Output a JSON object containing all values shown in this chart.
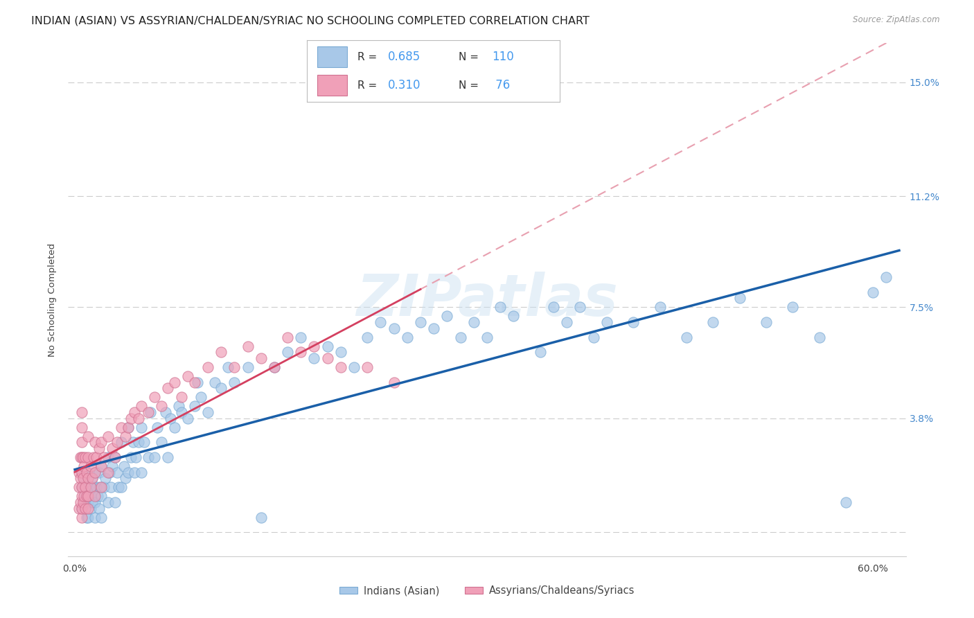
{
  "title": "INDIAN (ASIAN) VS ASSYRIAN/CHALDEAN/SYRIAC NO SCHOOLING COMPLETED CORRELATION CHART",
  "source": "Source: ZipAtlas.com",
  "ylabel": "No Schooling Completed",
  "watermark": "ZIPatlas",
  "legend1_label": "Indians (Asian)",
  "legend2_label": "Assyrians/Chaldeans/Syriacs",
  "r1": 0.685,
  "n1": 110,
  "r2": 0.31,
  "n2": 76,
  "scatter_color1": "#a8c8e8",
  "scatter_color2": "#f0a0b8",
  "line_color1": "#1a5fa8",
  "line_color2": "#d44060",
  "line_color2_dash": "#e8a0b0",
  "background_color": "#ffffff",
  "grid_color": "#cccccc",
  "xmin": -0.005,
  "xmax": 0.625,
  "ymin": -0.008,
  "ymax": 0.163,
  "ytick_positions": [
    0.0,
    0.038,
    0.075,
    0.112,
    0.15
  ],
  "ytick_labels": [
    "",
    "3.8%",
    "7.5%",
    "11.2%",
    "15.0%"
  ],
  "xtick_positions": [
    0.0,
    0.12,
    0.24,
    0.36,
    0.48,
    0.6
  ],
  "xtick_labels": [
    "0.0%",
    "",
    "",
    "",
    "",
    "60.0%"
  ],
  "title_fontsize": 11.5,
  "label_fontsize": 9.5,
  "tick_fontsize": 10,
  "blue_scatter_x": [
    0.005,
    0.005,
    0.005,
    0.007,
    0.007,
    0.008,
    0.009,
    0.01,
    0.01,
    0.01,
    0.01,
    0.012,
    0.012,
    0.013,
    0.013,
    0.014,
    0.015,
    0.015,
    0.015,
    0.016,
    0.017,
    0.018,
    0.018,
    0.019,
    0.02,
    0.02,
    0.02,
    0.022,
    0.023,
    0.025,
    0.025,
    0.026,
    0.027,
    0.028,
    0.03,
    0.03,
    0.032,
    0.033,
    0.035,
    0.035,
    0.037,
    0.038,
    0.04,
    0.04,
    0.042,
    0.044,
    0.045,
    0.046,
    0.048,
    0.05,
    0.05,
    0.052,
    0.055,
    0.057,
    0.06,
    0.062,
    0.065,
    0.068,
    0.07,
    0.072,
    0.075,
    0.078,
    0.08,
    0.085,
    0.09,
    0.092,
    0.095,
    0.1,
    0.105,
    0.11,
    0.115,
    0.12,
    0.13,
    0.14,
    0.15,
    0.16,
    0.17,
    0.18,
    0.19,
    0.2,
    0.21,
    0.22,
    0.23,
    0.24,
    0.25,
    0.26,
    0.27,
    0.28,
    0.29,
    0.3,
    0.31,
    0.32,
    0.33,
    0.35,
    0.36,
    0.37,
    0.38,
    0.39,
    0.4,
    0.42,
    0.44,
    0.46,
    0.48,
    0.5,
    0.52,
    0.54,
    0.56,
    0.58,
    0.6,
    0.61
  ],
  "blue_scatter_y": [
    0.008,
    0.015,
    0.02,
    0.01,
    0.018,
    0.012,
    0.005,
    0.005,
    0.01,
    0.015,
    0.02,
    0.008,
    0.012,
    0.01,
    0.018,
    0.015,
    0.005,
    0.01,
    0.02,
    0.015,
    0.012,
    0.008,
    0.02,
    0.015,
    0.005,
    0.012,
    0.022,
    0.015,
    0.018,
    0.01,
    0.025,
    0.02,
    0.015,
    0.022,
    0.01,
    0.025,
    0.02,
    0.015,
    0.015,
    0.03,
    0.022,
    0.018,
    0.02,
    0.035,
    0.025,
    0.03,
    0.02,
    0.025,
    0.03,
    0.02,
    0.035,
    0.03,
    0.025,
    0.04,
    0.025,
    0.035,
    0.03,
    0.04,
    0.025,
    0.038,
    0.035,
    0.042,
    0.04,
    0.038,
    0.042,
    0.05,
    0.045,
    0.04,
    0.05,
    0.048,
    0.055,
    0.05,
    0.055,
    0.005,
    0.055,
    0.06,
    0.065,
    0.058,
    0.062,
    0.06,
    0.055,
    0.065,
    0.07,
    0.068,
    0.065,
    0.07,
    0.068,
    0.072,
    0.065,
    0.07,
    0.065,
    0.075,
    0.072,
    0.06,
    0.075,
    0.07,
    0.075,
    0.065,
    0.07,
    0.07,
    0.075,
    0.065,
    0.07,
    0.078,
    0.07,
    0.075,
    0.065,
    0.01,
    0.08,
    0.085
  ],
  "pink_scatter_x": [
    0.003,
    0.003,
    0.003,
    0.004,
    0.004,
    0.004,
    0.005,
    0.005,
    0.005,
    0.005,
    0.005,
    0.005,
    0.005,
    0.005,
    0.005,
    0.006,
    0.006,
    0.006,
    0.007,
    0.007,
    0.008,
    0.008,
    0.008,
    0.009,
    0.009,
    0.01,
    0.01,
    0.01,
    0.01,
    0.01,
    0.012,
    0.012,
    0.013,
    0.014,
    0.015,
    0.015,
    0.015,
    0.016,
    0.018,
    0.02,
    0.02,
    0.02,
    0.022,
    0.025,
    0.025,
    0.028,
    0.03,
    0.032,
    0.035,
    0.038,
    0.04,
    0.042,
    0.045,
    0.048,
    0.05,
    0.055,
    0.06,
    0.065,
    0.07,
    0.075,
    0.08,
    0.085,
    0.09,
    0.1,
    0.11,
    0.12,
    0.13,
    0.14,
    0.15,
    0.16,
    0.17,
    0.18,
    0.19,
    0.2,
    0.22,
    0.24
  ],
  "pink_scatter_y": [
    0.008,
    0.015,
    0.02,
    0.01,
    0.018,
    0.025,
    0.005,
    0.008,
    0.012,
    0.015,
    0.02,
    0.025,
    0.03,
    0.035,
    0.04,
    0.01,
    0.018,
    0.025,
    0.012,
    0.022,
    0.008,
    0.015,
    0.025,
    0.012,
    0.02,
    0.008,
    0.012,
    0.018,
    0.025,
    0.032,
    0.015,
    0.022,
    0.018,
    0.025,
    0.012,
    0.02,
    0.03,
    0.025,
    0.028,
    0.015,
    0.022,
    0.03,
    0.025,
    0.02,
    0.032,
    0.028,
    0.025,
    0.03,
    0.035,
    0.032,
    0.035,
    0.038,
    0.04,
    0.038,
    0.042,
    0.04,
    0.045,
    0.042,
    0.048,
    0.05,
    0.045,
    0.052,
    0.05,
    0.055,
    0.06,
    0.055,
    0.062,
    0.058,
    0.055,
    0.065,
    0.06,
    0.062,
    0.058,
    0.055,
    0.055,
    0.05
  ]
}
